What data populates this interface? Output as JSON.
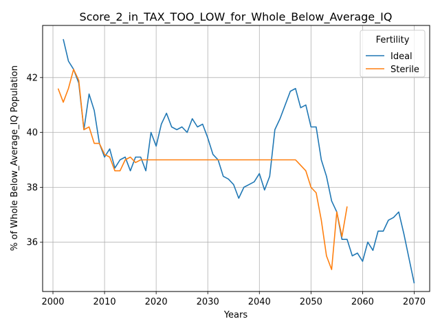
{
  "chart_data": {
    "type": "line",
    "title": "Score_2_in_TAX_TOO_LOW_for_Whole_Below_Average_IQ",
    "xlabel": "Years",
    "ylabel": "% of Whole Below_Average_IQ Population",
    "xlim": [
      1998,
      2073
    ],
    "ylim": [
      34.2,
      43.9
    ],
    "xticks": [
      2000,
      2010,
      2020,
      2030,
      2040,
      2050,
      2060,
      2070
    ],
    "yticks": [
      36,
      38,
      40,
      42
    ],
    "grid": true,
    "legend": {
      "title": "Fertility",
      "placement": "top-right"
    },
    "series": [
      {
        "name": "Ideal",
        "color": "#1f77b4",
        "points": [
          [
            2002,
            43.4
          ],
          [
            2003,
            42.6
          ],
          [
            2004,
            42.3
          ],
          [
            2005,
            41.8
          ],
          [
            2006,
            40.1
          ],
          [
            2007,
            41.4
          ],
          [
            2008,
            40.8
          ],
          [
            2009,
            39.6
          ],
          [
            2010,
            39.1
          ],
          [
            2011,
            39.4
          ],
          [
            2012,
            38.7
          ],
          [
            2013,
            39.0
          ],
          [
            2014,
            39.1
          ],
          [
            2015,
            38.6
          ],
          [
            2016,
            39.1
          ],
          [
            2017,
            39.1
          ],
          [
            2018,
            38.6
          ],
          [
            2019,
            40.0
          ],
          [
            2020,
            39.5
          ],
          [
            2021,
            40.3
          ],
          [
            2022,
            40.7
          ],
          [
            2023,
            40.2
          ],
          [
            2024,
            40.1
          ],
          [
            2025,
            40.2
          ],
          [
            2026,
            40.0
          ],
          [
            2027,
            40.5
          ],
          [
            2028,
            40.2
          ],
          [
            2029,
            40.3
          ],
          [
            2030,
            39.8
          ],
          [
            2031,
            39.2
          ],
          [
            2032,
            39.0
          ],
          [
            2033,
            38.4
          ],
          [
            2034,
            38.3
          ],
          [
            2035,
            38.1
          ],
          [
            2036,
            37.6
          ],
          [
            2037,
            38.0
          ],
          [
            2038,
            38.1
          ],
          [
            2039,
            38.2
          ],
          [
            2040,
            38.5
          ],
          [
            2041,
            37.9
          ],
          [
            2042,
            38.4
          ],
          [
            2043,
            40.1
          ],
          [
            2044,
            40.5
          ],
          [
            2045,
            41.0
          ],
          [
            2046,
            41.5
          ],
          [
            2047,
            41.6
          ],
          [
            2048,
            40.9
          ],
          [
            2049,
            41.0
          ],
          [
            2050,
            40.2
          ],
          [
            2051,
            40.2
          ],
          [
            2052,
            39.0
          ],
          [
            2053,
            38.4
          ],
          [
            2054,
            37.5
          ],
          [
            2055,
            37.1
          ],
          [
            2056,
            36.1
          ],
          [
            2057,
            36.1
          ],
          [
            2058,
            35.5
          ],
          [
            2059,
            35.6
          ],
          [
            2060,
            35.3
          ],
          [
            2061,
            36.0
          ],
          [
            2062,
            35.7
          ],
          [
            2063,
            36.4
          ],
          [
            2064,
            36.4
          ],
          [
            2065,
            36.8
          ],
          [
            2066,
            36.9
          ],
          [
            2067,
            37.1
          ],
          [
            2068,
            36.3
          ],
          [
            2069,
            35.4
          ],
          [
            2070,
            34.5
          ]
        ]
      },
      {
        "name": "Sterile",
        "color": "#ff7f0e",
        "points": [
          [
            2001,
            41.6
          ],
          [
            2002,
            41.1
          ],
          [
            2003,
            41.6
          ],
          [
            2004,
            42.3
          ],
          [
            2005,
            41.9
          ],
          [
            2006,
            40.1
          ],
          [
            2007,
            40.2
          ],
          [
            2008,
            39.6
          ],
          [
            2009,
            39.6
          ],
          [
            2010,
            39.2
          ],
          [
            2011,
            39.1
          ],
          [
            2012,
            38.6
          ],
          [
            2013,
            38.6
          ],
          [
            2014,
            39.0
          ],
          [
            2015,
            39.1
          ],
          [
            2016,
            38.9
          ],
          [
            2017,
            39.0
          ],
          [
            2018,
            39.0
          ],
          [
            2020,
            39.0
          ],
          [
            2025,
            39.0
          ],
          [
            2030,
            39.0
          ],
          [
            2035,
            39.0
          ],
          [
            2040,
            39.0
          ],
          [
            2045,
            39.0
          ],
          [
            2047,
            39.0
          ],
          [
            2048,
            38.8
          ],
          [
            2049,
            38.6
          ],
          [
            2050,
            38.0
          ],
          [
            2051,
            37.8
          ],
          [
            2052,
            36.8
          ],
          [
            2053,
            35.5
          ],
          [
            2054,
            35.0
          ],
          [
            2055,
            37.1
          ],
          [
            2056,
            36.2
          ],
          [
            2057,
            37.3
          ]
        ]
      }
    ]
  }
}
